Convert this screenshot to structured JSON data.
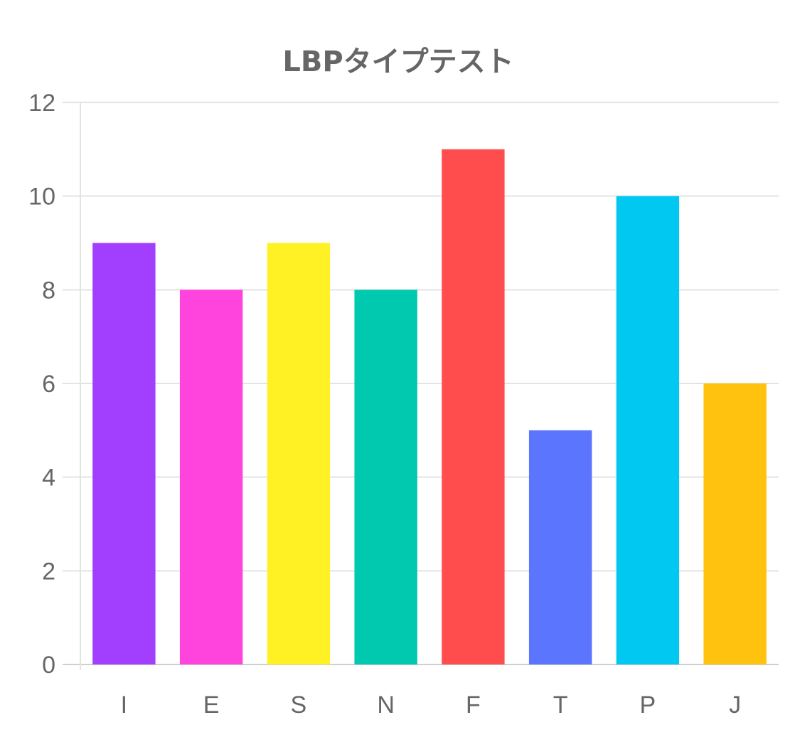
{
  "chart_data": {
    "type": "bar",
    "title": "LBPタイプテスト",
    "categories": [
      "I",
      "E",
      "S",
      "N",
      "F",
      "T",
      "P",
      "J"
    ],
    "values": [
      9,
      8,
      9,
      8,
      11,
      5,
      10,
      6
    ],
    "colors": [
      "#a23ffe",
      "#ff44dd",
      "#fff124",
      "#00c9af",
      "#ff4d4d",
      "#5b75ff",
      "#00c8f0",
      "#ffc20f"
    ],
    "ylim": [
      0,
      12
    ],
    "yticks": [
      0,
      2,
      4,
      6,
      8,
      10,
      12
    ],
    "grid": true,
    "legend": "none"
  }
}
